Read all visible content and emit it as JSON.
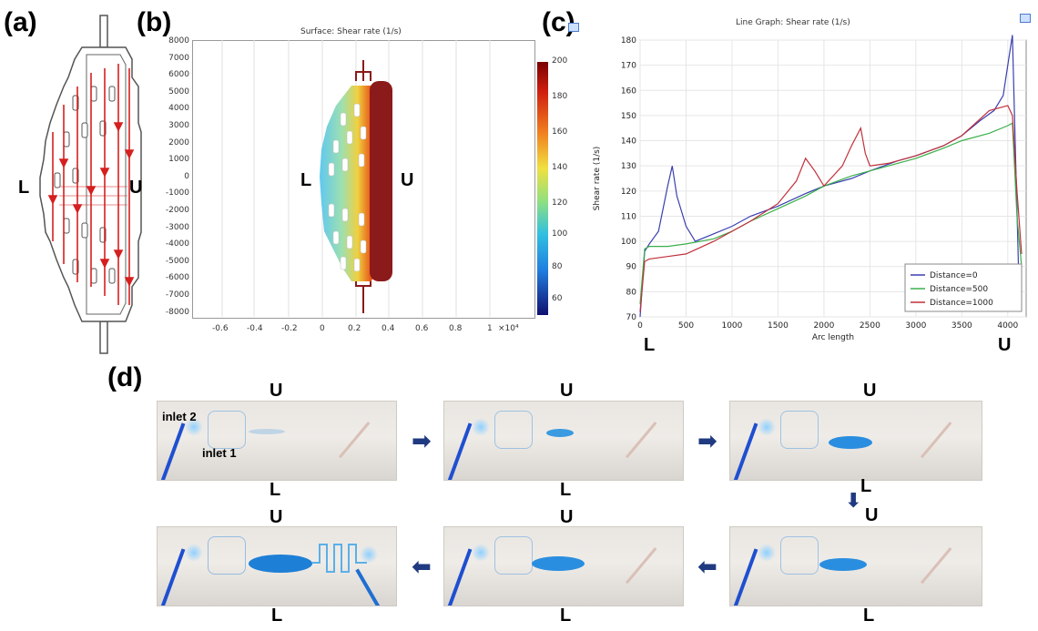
{
  "panels": {
    "a": {
      "label": "(a)",
      "left_label": "L",
      "right_label": "U"
    },
    "b": {
      "label": "(b)",
      "title": "Surface: Shear rate (1/s)",
      "left_label": "L",
      "right_label": "U",
      "x_ticks": [
        "-0.6",
        "-0.4",
        "-0.2",
        "0",
        "0.2",
        "0.4",
        "0.6",
        "0.8",
        "1"
      ],
      "x_multiplier": "×10⁴",
      "y_ticks": [
        "8000",
        "7000",
        "6000",
        "5000",
        "4000",
        "3000",
        "2000",
        "1000",
        "0",
        "-1000",
        "-2000",
        "-3000",
        "-4000",
        "-5000",
        "-6000",
        "-7000",
        "-8000"
      ],
      "colorbar_ticks": [
        "200",
        "180",
        "160",
        "140",
        "120",
        "100",
        "80",
        "60"
      ]
    },
    "c": {
      "label": "(c)",
      "left_label": "L",
      "right_label": "U"
    },
    "d": {
      "label": "(d)",
      "top_labels": [
        "U",
        "U",
        "U",
        "U",
        "U",
        "U"
      ],
      "bottom_labels": [
        "L",
        "L",
        "L",
        "L",
        "L",
        "L"
      ],
      "inlet2": "inlet 2",
      "inlet1": "inlet 1"
    }
  },
  "chart_data": {
    "type": "line",
    "title": "Line Graph: Shear rate (1/s)",
    "xlabel": "Arc length",
    "ylabel": "Shear rate (1/s)",
    "xlim": [
      0,
      4200
    ],
    "ylim": [
      70,
      180
    ],
    "x_ticks": [
      0,
      500,
      1000,
      1500,
      2000,
      2500,
      3000,
      3500,
      4000
    ],
    "y_ticks": [
      70,
      80,
      90,
      100,
      110,
      120,
      130,
      140,
      150,
      160,
      170,
      180
    ],
    "legend_position": "bottom-right",
    "series": [
      {
        "name": "Distance=0",
        "color": "#3a3fb0",
        "x": [
          0,
          50,
          100,
          200,
          300,
          350,
          400,
          500,
          600,
          800,
          1000,
          1200,
          1500,
          1800,
          2000,
          2300,
          2500,
          2800,
          3000,
          3300,
          3500,
          3700,
          3850,
          3950,
          4000,
          4050,
          4080,
          4120,
          4150
        ],
        "y": [
          70,
          96,
          99,
          104,
          122,
          130,
          118,
          106,
          100,
          103,
          106,
          110,
          114,
          119,
          122,
          125,
          128,
          132,
          134,
          138,
          142,
          148,
          152,
          158,
          170,
          182,
          140,
          85,
          75
        ]
      },
      {
        "name": "Distance=500",
        "color": "#3ab04a",
        "x": [
          0,
          50,
          100,
          300,
          500,
          800,
          1000,
          1200,
          1500,
          1800,
          2000,
          2300,
          2500,
          2800,
          3000,
          3300,
          3500,
          3800,
          4000,
          4050,
          4100,
          4150
        ],
        "y": [
          75,
          97,
          98,
          98,
          99,
          101,
          104,
          108,
          113,
          118,
          122,
          126,
          128,
          131,
          133,
          137,
          140,
          143,
          146,
          147,
          110,
          90
        ]
      },
      {
        "name": "Distance=1000",
        "color": "#c0303a",
        "x": [
          0,
          50,
          100,
          300,
          500,
          800,
          1000,
          1200,
          1500,
          1700,
          1800,
          1900,
          2000,
          2200,
          2300,
          2400,
          2450,
          2500,
          2700,
          3000,
          3300,
          3500,
          3800,
          4000,
          4050,
          4100,
          4150
        ],
        "y": [
          72,
          92,
          93,
          94,
          95,
          100,
          104,
          108,
          115,
          124,
          133,
          128,
          122,
          130,
          138,
          145,
          135,
          130,
          131,
          134,
          138,
          142,
          152,
          154,
          150,
          120,
          95
        ]
      }
    ]
  },
  "colors": {
    "arrow": "#1f3a80",
    "flow_arrow": "#d61f1f",
    "dye": "#1e7fd6"
  }
}
